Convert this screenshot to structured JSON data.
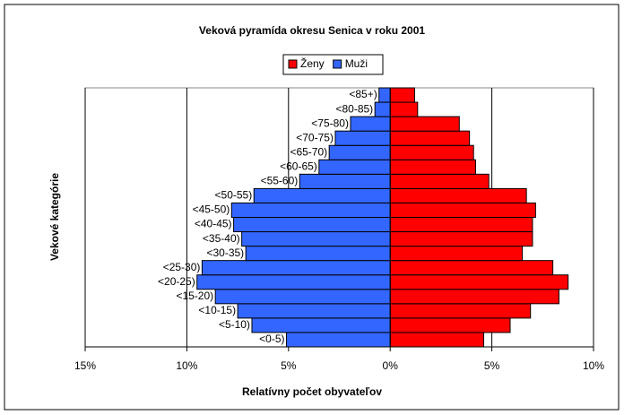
{
  "chart_data": {
    "type": "pyramid",
    "title": "Veková pyramída okresu Senica v roku 2001",
    "x_label": "Relatívny počet obyvateľov",
    "y_label": "Vekové kategórie",
    "categories": [
      "<0-5)",
      "<5-10)",
      "<10-15)",
      "<15-20)",
      "<20-25)",
      "<25-30)",
      "<30-35)",
      "<35-40)",
      "<40-45)",
      "<45-50)",
      "<50-55)",
      "<55-60)",
      "<60-65)",
      "<65-70)",
      "<70-75)",
      "<75-80)",
      "<80-85)",
      "<85+)"
    ],
    "series": [
      {
        "name": "Ženy",
        "color": "#ff0000",
        "values": [
          4.6,
          5.9,
          6.9,
          8.3,
          8.75,
          8.0,
          6.5,
          7.0,
          7.0,
          7.15,
          6.7,
          4.85,
          4.2,
          4.1,
          3.9,
          3.4,
          1.35,
          1.2
        ]
      },
      {
        "name": "Muži",
        "color": "#3366ff",
        "values": [
          -5.1,
          -6.8,
          -7.5,
          -8.6,
          -9.5,
          -9.25,
          -7.1,
          -7.3,
          -7.7,
          -7.8,
          -6.7,
          -4.45,
          -3.5,
          -3.0,
          -2.7,
          -1.95,
          -0.75,
          -0.55
        ]
      }
    ],
    "xlim": [
      -15,
      10
    ],
    "xticks": [
      {
        "value": -15,
        "label": "15%"
      },
      {
        "value": -10,
        "label": "10%"
      },
      {
        "value": -5,
        "label": "5%"
      },
      {
        "value": 0,
        "label": "0%"
      },
      {
        "value": 5,
        "label": "5%"
      },
      {
        "value": 10,
        "label": "10%"
      }
    ],
    "grid": true
  }
}
